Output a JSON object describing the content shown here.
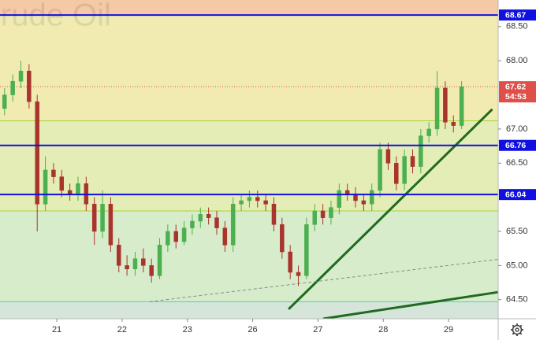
{
  "chart_data": {
    "type": "candlestick",
    "title": "Crude Oil",
    "x": [
      -0.8,
      -0.675,
      -0.55,
      -0.425,
      -0.3,
      -0.175,
      -0.05,
      0.075,
      0.2,
      0.325,
      0.45,
      0.575,
      0.7,
      0.825,
      0.95,
      1.075,
      1.2,
      1.325,
      1.45,
      1.575,
      1.7,
      1.825,
      1.95,
      2.075,
      2.2,
      2.325,
      2.45,
      2.575,
      2.7,
      2.825,
      2.95,
      3.075,
      3.2,
      3.325,
      3.45,
      3.575,
      3.7,
      3.825,
      3.95,
      4.075,
      4.2,
      4.325,
      4.45,
      4.575,
      4.7,
      4.825,
      4.95,
      5.075,
      5.2,
      5.325,
      5.45,
      5.575,
      5.7,
      5.825,
      5.95,
      6.075,
      6.2
    ],
    "open": [
      67.3,
      67.5,
      67.7,
      67.85,
      67.4,
      65.9,
      66.4,
      66.3,
      66.1,
      66.05,
      66.2,
      65.9,
      65.5,
      65.9,
      65.3,
      65.0,
      64.95,
      65.1,
      65.0,
      64.85,
      65.3,
      65.5,
      65.35,
      65.55,
      65.65,
      65.75,
      65.7,
      65.55,
      65.3,
      65.9,
      65.95,
      66.0,
      65.95,
      65.9,
      65.6,
      65.2,
      64.9,
      64.85,
      65.6,
      65.8,
      65.7,
      65.85,
      66.1,
      66.05,
      65.95,
      65.9,
      66.1,
      66.7,
      66.5,
      66.2,
      66.6,
      66.45,
      66.9,
      67.0,
      67.6,
      67.1,
      67.05
    ],
    "high": [
      67.6,
      67.8,
      68.0,
      67.95,
      67.5,
      66.6,
      66.5,
      66.4,
      66.2,
      66.3,
      66.3,
      66.0,
      66.1,
      66.0,
      65.4,
      65.15,
      65.2,
      65.25,
      65.1,
      65.4,
      65.6,
      65.6,
      65.65,
      65.75,
      65.85,
      65.85,
      65.8,
      65.65,
      66.0,
      66.05,
      66.1,
      66.1,
      66.05,
      66.0,
      65.7,
      65.3,
      65.0,
      65.7,
      65.9,
      65.9,
      65.95,
      66.2,
      66.2,
      66.15,
      66.05,
      66.2,
      66.8,
      66.8,
      66.6,
      66.7,
      66.7,
      67.0,
      67.1,
      67.85,
      67.7,
      67.2,
      67.7
    ],
    "low": [
      67.2,
      67.4,
      67.6,
      67.3,
      65.5,
      65.8,
      66.2,
      66.0,
      65.95,
      65.95,
      65.8,
      65.3,
      65.4,
      65.2,
      64.9,
      64.85,
      64.85,
      64.9,
      64.75,
      64.8,
      65.2,
      65.25,
      65.3,
      65.45,
      65.55,
      65.6,
      65.45,
      65.2,
      65.2,
      65.8,
      65.85,
      65.85,
      65.8,
      65.5,
      65.1,
      64.8,
      64.7,
      64.8,
      65.5,
      65.6,
      65.6,
      65.75,
      65.95,
      65.85,
      65.8,
      65.8,
      66.0,
      66.4,
      66.1,
      66.1,
      66.35,
      66.35,
      66.8,
      66.9,
      67.0,
      66.95,
      67.0
    ],
    "close": [
      67.5,
      67.7,
      67.85,
      67.4,
      65.9,
      66.4,
      66.3,
      66.1,
      66.05,
      66.2,
      65.9,
      65.5,
      65.9,
      65.3,
      65.0,
      64.95,
      65.1,
      65.0,
      64.85,
      65.3,
      65.5,
      65.35,
      65.55,
      65.65,
      65.75,
      65.7,
      65.55,
      65.3,
      65.9,
      65.95,
      66.0,
      65.95,
      65.9,
      65.6,
      65.2,
      64.9,
      64.85,
      65.6,
      65.8,
      65.7,
      65.85,
      66.1,
      66.05,
      65.95,
      65.9,
      66.1,
      66.7,
      66.5,
      66.2,
      66.6,
      66.45,
      66.9,
      67.0,
      67.6,
      67.1,
      67.05,
      67.62
    ],
    "up_color": "#4caf50",
    "down_color": "#a8342c",
    "xlim": [
      -0.87,
      6.76
    ],
    "ylim": [
      64.22,
      68.89
    ],
    "xticks": [
      {
        "value": 0,
        "label": "21"
      },
      {
        "value": 1,
        "label": "22"
      },
      {
        "value": 2,
        "label": "23"
      },
      {
        "value": 3,
        "label": "26"
      },
      {
        "value": 4,
        "label": "27"
      },
      {
        "value": 5,
        "label": "28"
      },
      {
        "value": 6,
        "label": "29"
      }
    ],
    "yticks": [
      {
        "value": 68.5,
        "label": "68.50"
      },
      {
        "value": 68.0,
        "label": "68.00"
      },
      {
        "value": 67.0,
        "label": "67.00"
      },
      {
        "value": 66.5,
        "label": "66.50"
      },
      {
        "value": 65.5,
        "label": "65.50"
      },
      {
        "value": 65.0,
        "label": "65.00"
      },
      {
        "value": 64.5,
        "label": "64.50"
      }
    ],
    "zones": [
      {
        "from": 68.67,
        "to": 68.89,
        "color": "#f5c8a6"
      },
      {
        "from": 67.12,
        "to": 68.67,
        "color": "#f1ebb2"
      },
      {
        "from": 65.8,
        "to": 67.12,
        "color": "#e5edb6"
      },
      {
        "from": 64.47,
        "to": 65.8,
        "color": "#d7eccb"
      },
      {
        "from": 64.22,
        "to": 64.47,
        "color": "#d6e5d9"
      }
    ],
    "zone_lines": [
      {
        "value": 67.12,
        "color": "#a6d23a"
      },
      {
        "value": 65.8,
        "color": "#a6d23a"
      },
      {
        "value": 64.47,
        "color": "#52d1b2"
      }
    ],
    "levels": {
      "color": "#1010e0",
      "values": [
        68.67,
        66.76,
        66.04
      ]
    },
    "trendlines": [
      {
        "x": [
          3.55,
          6.67
        ],
        "y": [
          64.36,
          67.29
        ],
        "color": "#1f6b1f",
        "style": "solid"
      },
      {
        "x": [
          4.08,
          6.76
        ],
        "y": [
          64.22,
          64.61
        ],
        "color": "#1f6b1f",
        "style": "solid"
      },
      {
        "x": [
          1.42,
          6.76
        ],
        "y": [
          64.47,
          65.09
        ],
        "color": "#8a8a8a",
        "style": "dashed"
      }
    ],
    "current_price": {
      "value": 67.62,
      "countdown": "54:53",
      "color": "#e0504a"
    }
  }
}
